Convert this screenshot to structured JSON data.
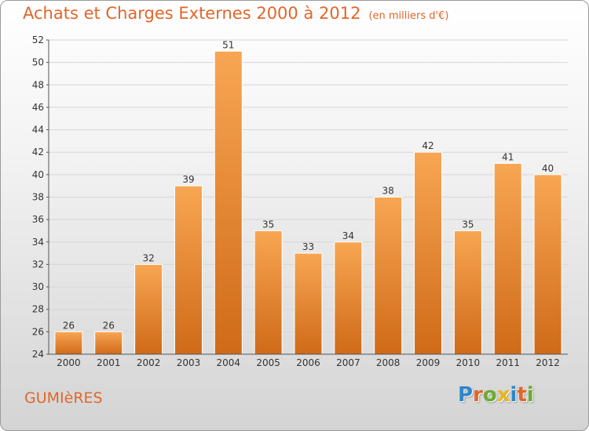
{
  "header": {
    "title": "Achats et Charges Externes 2000 à 2012",
    "unit": "(en milliers d'€)"
  },
  "footer": {
    "commune": "GUMIèRES",
    "logo_letters": [
      {
        "char": "P",
        "color": "#2f86c9"
      },
      {
        "char": "r",
        "color": "#e0662a"
      },
      {
        "char": "o",
        "color": "#6cab2f"
      },
      {
        "char": "x",
        "color": "#e9b51c"
      },
      {
        "char": "i",
        "color": "#2f86c9"
      },
      {
        "char": "t",
        "color": "#e0662a"
      },
      {
        "char": "i",
        "color": "#6cab2f"
      }
    ]
  },
  "colors": {
    "bar_top": "#f8a653",
    "bar_bottom": "#cf6a18",
    "accent": "#e0662a",
    "grid": "#d6d6d6",
    "axis": "#555555"
  },
  "chart_data": {
    "type": "bar",
    "title": "Achats et Charges Externes 2000 à 2012",
    "categories": [
      "2000",
      "2001",
      "2002",
      "2003",
      "2004",
      "2005",
      "2006",
      "2007",
      "2008",
      "2009",
      "2010",
      "2011",
      "2012"
    ],
    "values": [
      26,
      26,
      32,
      39,
      51,
      35,
      33,
      34,
      38,
      42,
      35,
      41,
      40
    ],
    "xlabel": "",
    "ylabel": "",
    "ylim": [
      24,
      52
    ],
    "yticks": [
      24,
      26,
      28,
      30,
      32,
      34,
      36,
      38,
      40,
      42,
      44,
      46,
      48,
      50,
      52
    ],
    "grid": true,
    "legend": "none"
  }
}
